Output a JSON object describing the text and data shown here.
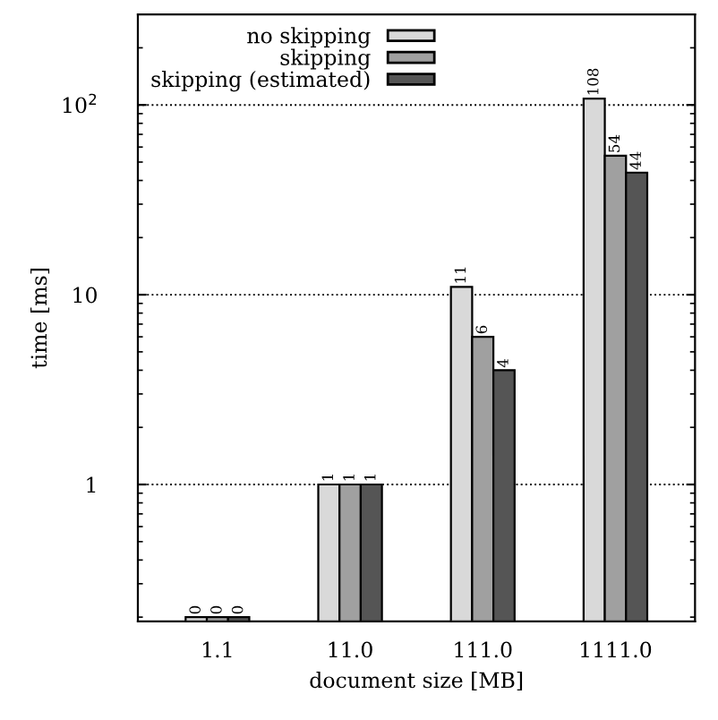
{
  "chart_data": {
    "type": "bar",
    "xlabel": "document size [MB]",
    "ylabel": "time [ms]",
    "categories": [
      "1.1",
      "11.0",
      "111.0",
      "1111.0"
    ],
    "series": [
      {
        "name": "no skipping",
        "color": "#d9d9d9",
        "values": [
          0.2,
          1,
          11,
          108
        ],
        "value_labels": [
          "0",
          "1",
          "11",
          "108"
        ]
      },
      {
        "name": "skipping",
        "color": "#a0a0a0",
        "values": [
          0.2,
          1,
          6,
          54
        ],
        "value_labels": [
          "0",
          "1",
          "6",
          "54"
        ]
      },
      {
        "name": "skipping (estimated)",
        "color": "#555555",
        "values": [
          0.2,
          1,
          4,
          44
        ],
        "value_labels": [
          "0",
          "1",
          "4",
          "44"
        ]
      }
    ],
    "log": "y",
    "ylim": [
      0.19,
      300
    ],
    "yticks": [
      1,
      10,
      {
        "value": 100,
        "label": "10$^{2}$"
      }
    ],
    "grid": "y",
    "legend": "top left"
  }
}
